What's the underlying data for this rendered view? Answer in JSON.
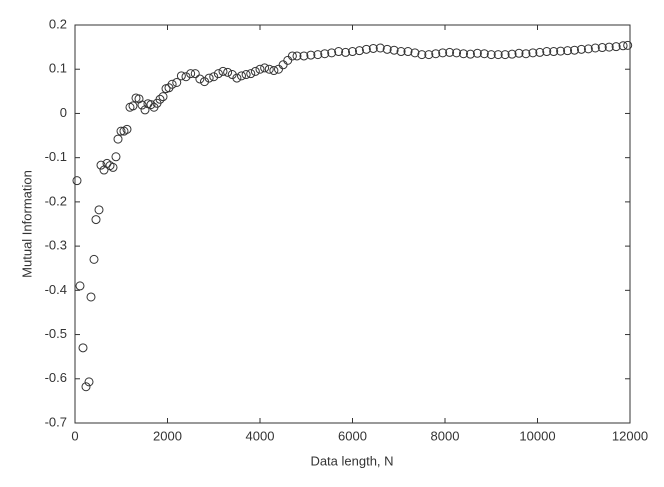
{
  "chart_data": {
    "type": "scatter",
    "xlabel": "Data length, N",
    "ylabel": "Mutual Information",
    "xlim": [
      0,
      12000
    ],
    "ylim": [
      -0.7,
      0.2
    ],
    "xticks": [
      0,
      2000,
      4000,
      6000,
      8000,
      10000,
      12000
    ],
    "yticks": [
      -0.7,
      -0.6,
      -0.5,
      -0.4,
      -0.3,
      -0.2,
      -0.1,
      0,
      0.1,
      0.2
    ],
    "marker_color": "#333333",
    "x": [
      43,
      108,
      173,
      238,
      303,
      346,
      411,
      454,
      519,
      562,
      627,
      692,
      757,
      822,
      886,
      930,
      995,
      1059,
      1124,
      1189,
      1254,
      1319,
      1384,
      1449,
      1514,
      1578,
      1643,
      1708,
      1773,
      1838,
      1903,
      1968,
      2032,
      2100,
      2200,
      2300,
      2400,
      2500,
      2600,
      2700,
      2800,
      2900,
      3000,
      3100,
      3200,
      3300,
      3400,
      3500,
      3600,
      3700,
      3800,
      3900,
      4000,
      4100,
      4200,
      4300,
      4400,
      4500,
      4600,
      4700,
      4800,
      4950,
      5100,
      5250,
      5400,
      5550,
      5700,
      5850,
      6000,
      6150,
      6300,
      6450,
      6600,
      6750,
      6900,
      7050,
      7200,
      7350,
      7500,
      7650,
      7800,
      7950,
      8100,
      8250,
      8400,
      8550,
      8700,
      8850,
      9000,
      9150,
      9300,
      9450,
      9600,
      9750,
      9900,
      10050,
      10200,
      10350,
      10500,
      10650,
      10800,
      10950,
      11100,
      11250,
      11400,
      11550,
      11700,
      11850,
      11950
    ],
    "y": [
      -0.152,
      -0.39,
      -0.53,
      -0.618,
      -0.607,
      -0.415,
      -0.33,
      -0.24,
      -0.218,
      -0.117,
      -0.128,
      -0.113,
      -0.118,
      -0.122,
      -0.098,
      -0.058,
      -0.04,
      -0.04,
      -0.036,
      0.014,
      0.017,
      0.035,
      0.033,
      0.019,
      0.008,
      0.022,
      0.02,
      0.014,
      0.023,
      0.032,
      0.038,
      0.056,
      0.058,
      0.066,
      0.07,
      0.085,
      0.083,
      0.09,
      0.09,
      0.078,
      0.072,
      0.08,
      0.083,
      0.09,
      0.095,
      0.093,
      0.088,
      0.08,
      0.085,
      0.088,
      0.09,
      0.095,
      0.1,
      0.103,
      0.1,
      0.097,
      0.1,
      0.11,
      0.12,
      0.13,
      0.13,
      0.13,
      0.132,
      0.133,
      0.135,
      0.137,
      0.14,
      0.138,
      0.14,
      0.142,
      0.145,
      0.147,
      0.148,
      0.145,
      0.143,
      0.14,
      0.14,
      0.137,
      0.133,
      0.133,
      0.135,
      0.137,
      0.138,
      0.137,
      0.135,
      0.134,
      0.136,
      0.135,
      0.133,
      0.133,
      0.133,
      0.134,
      0.136,
      0.135,
      0.137,
      0.138,
      0.14,
      0.14,
      0.141,
      0.142,
      0.143,
      0.145,
      0.146,
      0.148,
      0.149,
      0.15,
      0.151,
      0.153,
      0.154
    ]
  }
}
